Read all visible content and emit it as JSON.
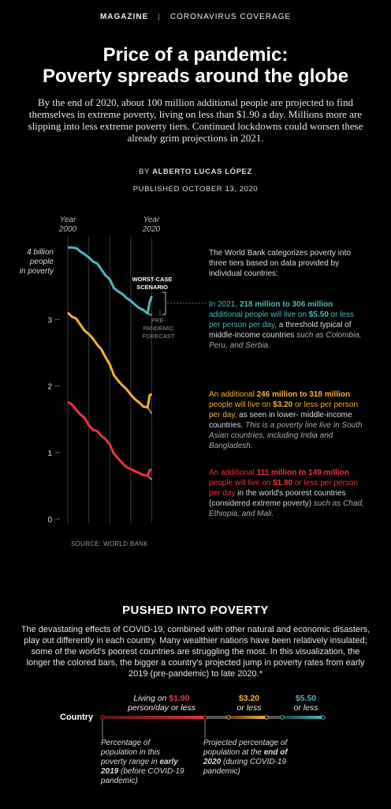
{
  "header": {
    "section": "MAGAZINE",
    "separator": "|",
    "topic": "CORONAVIRUS COVERAGE",
    "title_line1": "Price of a pandemic:",
    "title_line2": "Poverty spreads around the globe",
    "dek": "By the end of 2020, about 100 million additional people are projected to find themselves in extreme poverty, living on less than $1.90 a day. Millions more are slipping into less extreme poverty tiers. Continued lockdowns could worsen these already grim projections in 2021.",
    "byline_prefix": "BY",
    "author": "ALBERTO LUCAS LÓPEZ",
    "published": "PUBLISHED OCTOBER 13, 2020"
  },
  "colors": {
    "teal": "#4fb6bd",
    "gold": "#f2b134",
    "red": "#e8343f",
    "forecast": "#8a8a8a"
  },
  "chart_data": {
    "type": "line",
    "xlabel_start_word": "Year",
    "xlabel_start": "2000",
    "xlabel_end_word": "Year",
    "xlabel_end": "2020",
    "y_top_label": [
      "4 billion",
      "people",
      "in poverty"
    ],
    "y_ticks": [
      "3",
      "2",
      "1",
      "0"
    ],
    "xlim": [
      2000,
      2021
    ],
    "ylim": [
      0,
      4
    ],
    "series": [
      {
        "tier": "5.50",
        "x": [
          2000,
          2001,
          2002,
          2003,
          2004,
          2005,
          2006,
          2007,
          2008,
          2009,
          2010,
          2011,
          2012,
          2013,
          2014,
          2015,
          2016,
          2017,
          2018,
          2019,
          2019.5,
          2020
        ],
        "y": [
          4.08,
          4.08,
          4.07,
          4.02,
          3.98,
          3.93,
          3.87,
          3.84,
          3.75,
          3.66,
          3.6,
          3.47,
          3.42,
          3.38,
          3.32,
          3.28,
          3.22,
          3.17,
          3.14,
          3.09,
          3.26,
          3.35
        ],
        "forecast": [
          [
            2019,
            3.09
          ],
          [
            2020,
            3.06
          ]
        ]
      },
      {
        "tier": "3.20",
        "x": [
          2000,
          2001,
          2002,
          2003,
          2004,
          2005,
          2006,
          2007,
          2008,
          2009,
          2010,
          2011,
          2012,
          2013,
          2014,
          2015,
          2016,
          2017,
          2018,
          2019,
          2019.5,
          2020
        ],
        "y": [
          3.1,
          3.04,
          3.01,
          2.92,
          2.83,
          2.78,
          2.71,
          2.62,
          2.55,
          2.43,
          2.32,
          2.16,
          2.08,
          2.01,
          1.95,
          1.87,
          1.8,
          1.75,
          1.69,
          1.68,
          1.86,
          1.88
        ],
        "forecast": [
          [
            2019,
            1.68
          ],
          [
            2020,
            1.58
          ]
        ]
      },
      {
        "tier": "1.90",
        "x": [
          2000,
          2001,
          2002,
          2003,
          2004,
          2005,
          2006,
          2007,
          2008,
          2009,
          2010,
          2011,
          2012,
          2013,
          2014,
          2015,
          2016,
          2017,
          2018,
          2019,
          2019.5,
          2020
        ],
        "y": [
          1.76,
          1.72,
          1.64,
          1.57,
          1.52,
          1.41,
          1.34,
          1.32,
          1.25,
          1.2,
          1.12,
          0.98,
          0.91,
          0.84,
          0.78,
          0.75,
          0.72,
          0.69,
          0.66,
          0.65,
          0.74,
          0.74
        ],
        "forecast": [
          [
            2019,
            0.65
          ],
          [
            2020,
            0.59
          ]
        ]
      }
    ],
    "annotation_worst": [
      "WORST-CASE",
      "SCENARIO"
    ],
    "annotation_pre": [
      "PRE-",
      "PANDEMIC",
      "FORECAST"
    ]
  },
  "notes": {
    "intro": "The World Bank categorizes poverty into three tiers based on data provided by individual countries:",
    "teal_a": "In 2021, ",
    "teal_b": "218 million to 306 million",
    "teal_c": " additional people will live on ",
    "teal_d": "$5.50",
    "teal_e": " or less per person per day,",
    "teal_f": " a threshold typical of middle-income countries ",
    "teal_g": "such as Colombia, Peru, and Serbia.",
    "gold_a": "An additional ",
    "gold_b": "246 million to 318 million",
    "gold_c": " people will live on ",
    "gold_d": "$3.20",
    "gold_e": " or less per person per day,",
    "gold_f": " as seen in lower- middle-income countries. ",
    "gold_g": "This is a poverty line live in South Asian countries, including India and Bangladesh.",
    "red_a": "An additional ",
    "red_b": "111 million to 149 million",
    "red_c": " people will live on ",
    "red_d": "$1.90",
    "red_e": " or less per person per day",
    "red_f": " in the world's poorest countries (considered extreme poverty) ",
    "red_g": "such as Chad, Ethiopia, and Mali."
  },
  "source": "SOURCE: WORLD BANK",
  "section2": {
    "heading": "PUSHED INTO POVERTY",
    "body": "The devastating effects of COVID-19, combined with other natural and economic disasters, play out differently in each country. Many wealthier nations have been relatively insulated; some of the world's poorest countries are struggling the most. In this visualization, the longer the colored bars, the bigger a country's projected jump in poverty rates from early 2019 (pre-pandemic) to late 2020.*"
  },
  "legend": {
    "red_pre": "Living on ",
    "red_val": "$1.90",
    "red_post": "person/day or less",
    "gold_val": "$3.20",
    "gold_post": "or less",
    "teal_val": "$5.50",
    "teal_post": "or less",
    "country": "Country",
    "ann_left_1": "Percentage of population in this poverty range in ",
    "ann_left_2": "early 2019",
    "ann_left_3": " (before COVID-19 pandemic)",
    "ann_right_1": "Projected percentage of population at the ",
    "ann_right_2": "end of 2020",
    "ann_right_3": " (during COVID-19 pandemic)"
  }
}
